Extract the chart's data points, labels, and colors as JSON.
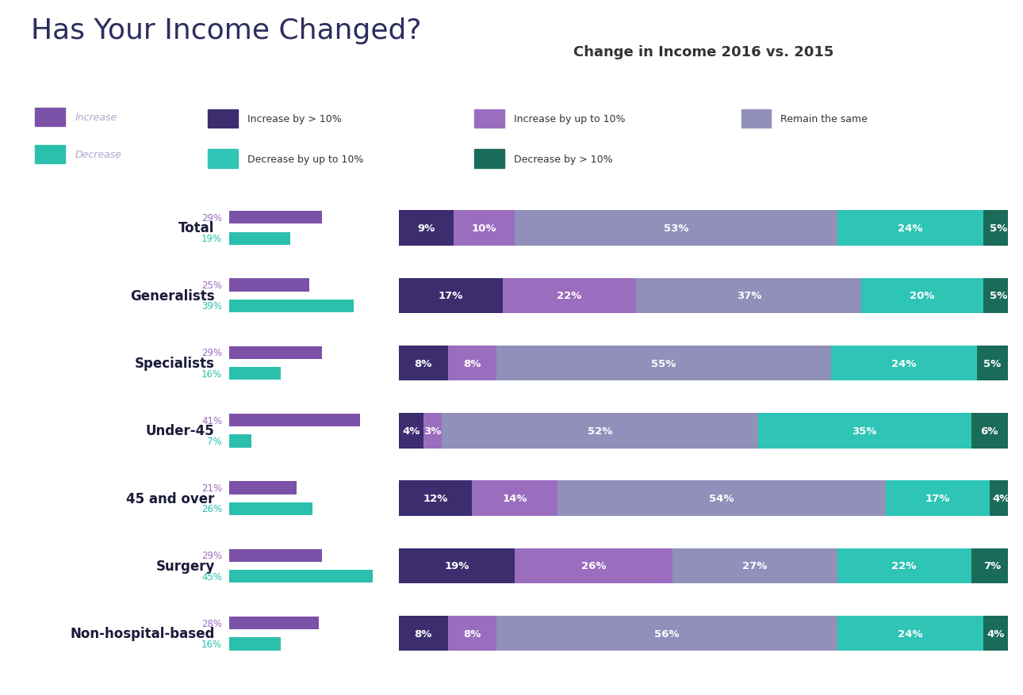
{
  "title_main": "Has Your Income Changed?",
  "title_sub": "Change in Income 2016 vs. 2015",
  "categories": [
    "Total",
    "Generalists",
    "Specialists",
    "Under-45",
    "45 and over",
    "Surgery",
    "Non-hospital-based"
  ],
  "increase_pct": [
    29,
    25,
    29,
    41,
    21,
    29,
    28
  ],
  "decrease_pct": [
    19,
    39,
    16,
    7,
    26,
    45,
    16
  ],
  "stacked_data": [
    [
      9,
      10,
      53,
      24,
      5
    ],
    [
      17,
      22,
      37,
      20,
      5
    ],
    [
      8,
      8,
      55,
      24,
      5
    ],
    [
      4,
      3,
      52,
      35,
      6
    ],
    [
      12,
      14,
      54,
      17,
      4
    ],
    [
      19,
      26,
      27,
      22,
      7
    ],
    [
      8,
      8,
      56,
      24,
      4
    ]
  ],
  "segment_labels": [
    [
      "9%",
      "10%",
      "53%",
      "24%",
      "5%"
    ],
    [
      "17%",
      "22%",
      "37%",
      "20%",
      "5%"
    ],
    [
      "8%",
      "8%",
      "55%",
      "24%",
      "5%"
    ],
    [
      "4%",
      "3%",
      "52%",
      "35%",
      "6%"
    ],
    [
      "12%",
      "14%",
      "54%",
      "17%",
      "4%"
    ],
    [
      "19%",
      "26%",
      "27%",
      "22%",
      "7%"
    ],
    [
      "8%",
      "8%",
      "56%",
      "24%",
      "4%"
    ]
  ],
  "bar_colors": [
    "#3b2d6e",
    "#9b6dbf",
    "#9090bb",
    "#2ec4b6",
    "#1a6b5a"
  ],
  "color_increase_bar": "#7b52a8",
  "color_decrease_bar": "#2bbfad",
  "color_increase_text": "#9b6dbf",
  "color_decrease_text": "#2bbfad",
  "legend_labels": [
    "Increase by > 10%",
    "Increase by up to 10%",
    "Remain the same",
    "Decrease by up to 10%",
    "Decrease by > 10%"
  ],
  "legend_left_labels": [
    "Increase",
    "Decrease"
  ],
  "bg_color": "#ffffff",
  "title_color": "#2d2d5e",
  "category_color": "#1a1a3a",
  "text_color_light": "#aaaacc"
}
